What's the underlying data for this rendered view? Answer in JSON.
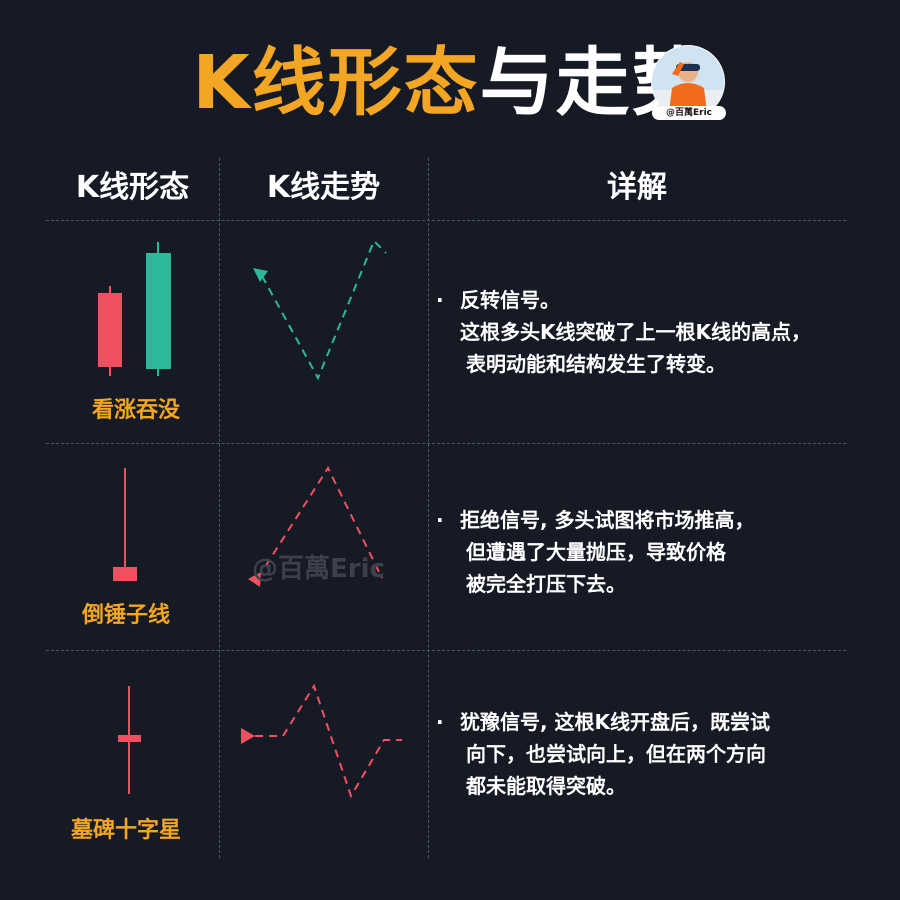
{
  "title": {
    "part1": "K线形态",
    "part2": "与走势"
  },
  "avatar": {
    "tag": "@百萬Eric"
  },
  "headers": {
    "pattern": "K线形态",
    "trend": "K线走势",
    "detail": "详解"
  },
  "rows": [
    {
      "name": "看涨吞没",
      "bullet": "·",
      "lines": [
        "反转信号。",
        "这根多头K线突破了上一根K线的高点，",
        "表明动能和结构发生了转变。"
      ]
    },
    {
      "name": "倒锤子线",
      "bullet": "·",
      "lines": [
        "拒绝信号, 多头试图将市场推高，",
        "但遭遇了大量抛压，导致价格",
        "被完全打压下去。"
      ]
    },
    {
      "name": "墓碑十字星",
      "bullet": "·",
      "lines": [
        "犹豫信号, 这根K线开盘后，既尝试",
        "向下，也尝试向上，但在两个方向",
        "都未能取得突破。"
      ]
    }
  ],
  "watermark": "@百萬Eric",
  "colors": {
    "accent": "#f3a524",
    "bull": "#2db89a",
    "bear": "#f0505f",
    "background": "#161a25",
    "divider": "#4d5462"
  }
}
